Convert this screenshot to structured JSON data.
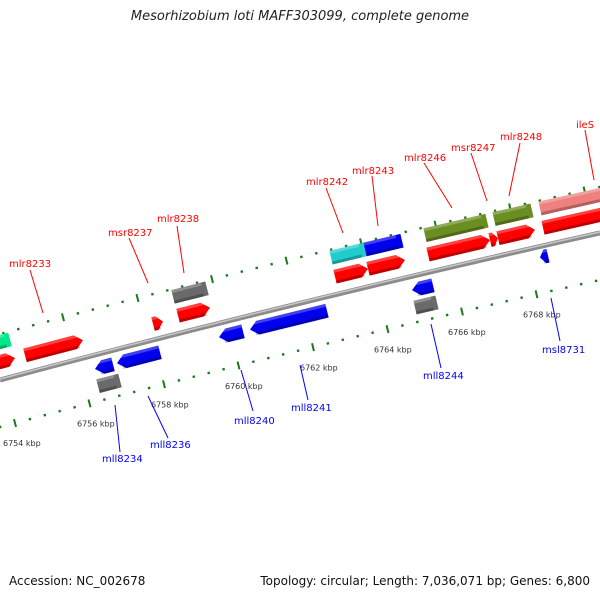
{
  "title": "Mesorhizobium loti MAFF303099, complete genome",
  "footer": {
    "accession": "Accession: NC_002678",
    "summary": "Topology: circular; Length: 7,036,071 bp; Genes: 6,800"
  },
  "colors": {
    "forward_label": "#ff0000",
    "reverse_label": "#0000ff",
    "tick": "#1a7a1a",
    "backbone": "#8c8c8c"
  },
  "scale_labels": [
    "6754 kbp",
    "6756 kbp",
    "6758 kbp",
    "6760 kbp",
    "6762 kbp",
    "6764 kbp",
    "6766 kbp",
    "6768 kbp"
  ],
  "forward_labels": [
    "mlr8233",
    "msr8237",
    "mlr8238",
    "mlr8242",
    "mlr8243",
    "mlr8246",
    "msr8247",
    "mlr8248",
    "ileS"
  ],
  "reverse_labels": [
    "mll8234",
    "mll8236",
    "mll8240",
    "mll8241",
    "mll8244",
    "msl8731"
  ]
}
